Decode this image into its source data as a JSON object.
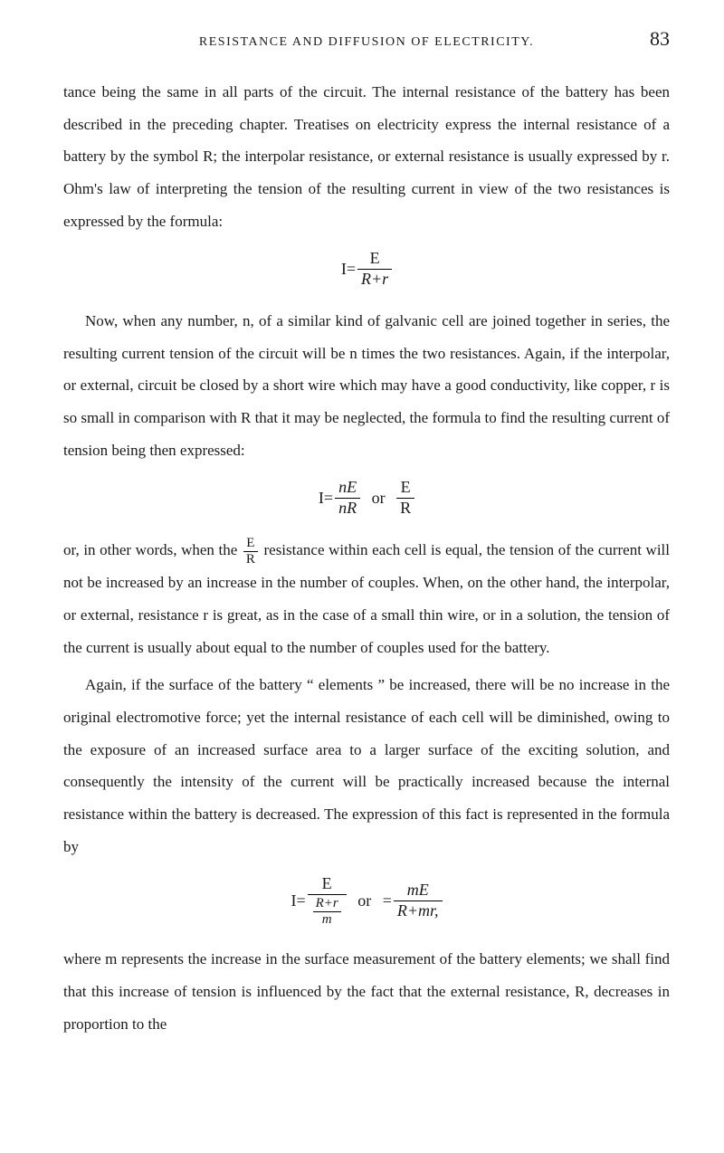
{
  "header": {
    "running_head": "RESISTANCE AND DIFFUSION OF ELECTRICITY.",
    "page_number": "83"
  },
  "paragraphs": {
    "p1": "tance being the same in all parts of the circuit. The internal resistance of the battery has been described in the preceding chapter. Treatises on electricity express the internal resistance of a battery by the symbol R; the interpolar resistance, or external resistance is usually expressed by r. Ohm's law of interpreting the tension of the resulting current in view of the two resistances is expressed by the formula:",
    "p2": "Now, when any number, n, of a similar kind of galvanic cell are joined together in series, the resulting current tension of the circuit will be n times the two resistances. Again, if the interpolar, or external, circuit be closed by a short wire which may have a good conductivity, like copper, r is so small in comparison with R that it may be neglected, the formula to find the resulting current of tension being then expressed:",
    "p3a": "or, in other words, when the ",
    "p3b": " resistance within each cell is equal, the tension of the current will not be increased by an increase in the number of couples. When, on the other hand, the interpolar, or external, resistance r is great, as in the case of a small thin wire, or in a solution, the tension of the current is usually about equal to the number of couples used for the battery.",
    "p4": "Again, if the surface of the battery “ elements ” be increased, there will be no increase in the original electromotive force; yet the internal resistance of each cell will be diminished, owing to the exposure of an increased surface area to a larger surface of the exciting solution, and consequently the intensity of the current will be practically increased because the internal resistance within the battery is decreased. The expression of this fact is represented in the formula by",
    "p5": "where m represents the increase in the surface measurement of the battery elements; we shall find that this increase of tension is influenced by the fact that the external resistance, R, decreases in proportion to the"
  },
  "formulas": {
    "f1": {
      "prefix": "I=",
      "num": "E",
      "den": "R+r"
    },
    "f2": {
      "prefix": "I=",
      "num1": "nE",
      "den1": "nR",
      "mid": "or",
      "num2": "E",
      "den2": "R"
    },
    "f3_inline": {
      "num": "E",
      "den": "R"
    },
    "f4": {
      "prefix": "I=",
      "left_num_top": "E",
      "left_num_bottom_num": "R+r",
      "left_num_bottom_den": "m",
      "mid": "or",
      "eq2": "=",
      "right_num": "mE",
      "right_den": "R+mr,"
    }
  }
}
